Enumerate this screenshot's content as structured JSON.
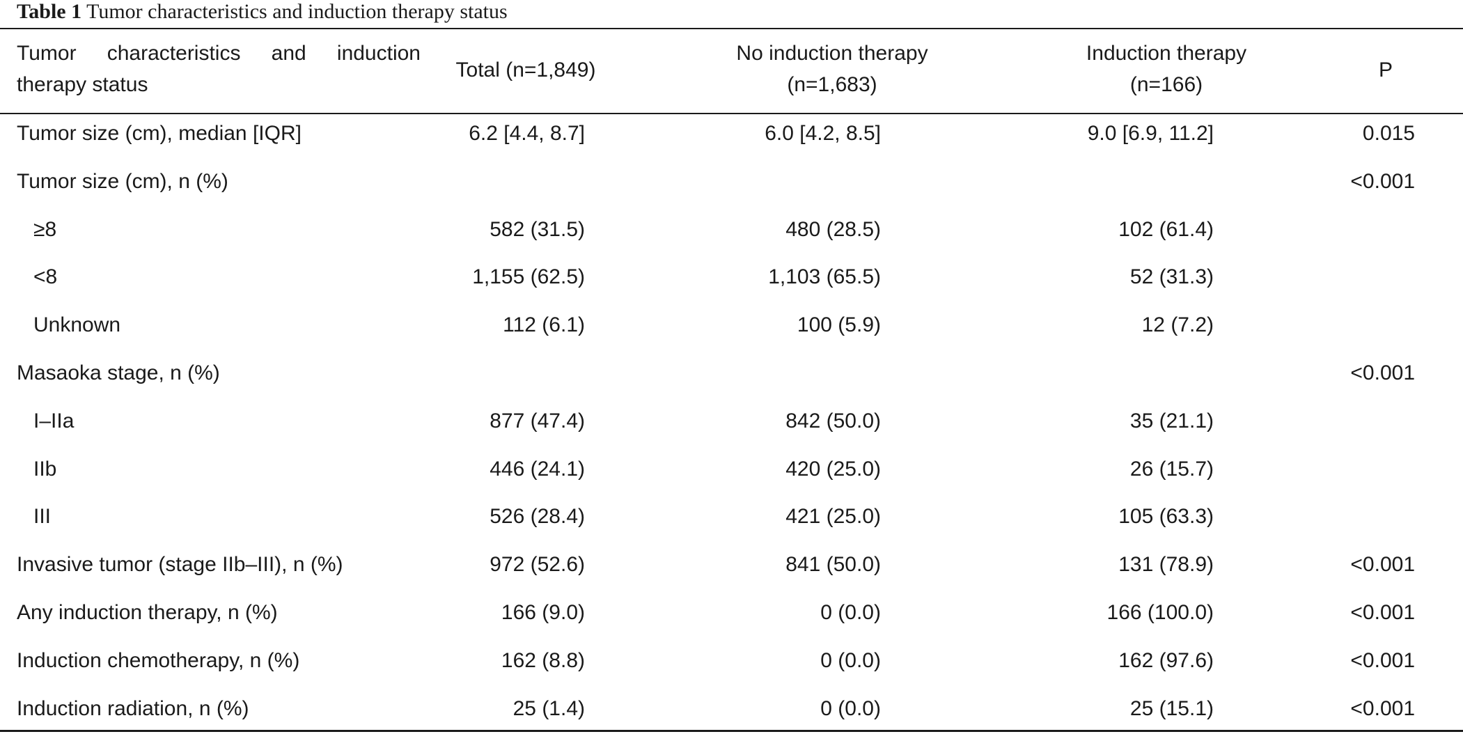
{
  "caption": {
    "label": "Table 1",
    "text": "Tumor characteristics and induction therapy status"
  },
  "columns": [
    "Tumor characteristics and induction therapy status",
    "Total (n=1,849)",
    "No induction therapy (n=1,683)",
    "Induction therapy (n=166)",
    "P"
  ],
  "header": {
    "c0_line1": "Tumor characteristics and induction",
    "c0_line2": "therapy status",
    "c1": "Total (n=1,849)",
    "c2_line1": "No induction therapy",
    "c2_line2": "(n=1,683)",
    "c3_line1": "Induction therapy",
    "c3_line2": "(n=166)",
    "c4": "P"
  },
  "rows": [
    {
      "label": "Tumor size (cm), median [IQR]",
      "indent": false,
      "total": "6.2 [4.4, 8.7]",
      "no_induction": "6.0 [4.2, 8.5]",
      "induction": "9.0 [6.9, 11.2]",
      "p": "0.015"
    },
    {
      "label": "Tumor size (cm), n (%)",
      "indent": false,
      "total": "",
      "no_induction": "",
      "induction": "",
      "p": "<0.001"
    },
    {
      "label": "≥8",
      "indent": true,
      "total": "582 (31.5)",
      "no_induction": "480 (28.5)",
      "induction": "102 (61.4)",
      "p": ""
    },
    {
      "label": "<8",
      "indent": true,
      "total": "1,155 (62.5)",
      "no_induction": "1,103 (65.5)",
      "induction": "52 (31.3)",
      "p": ""
    },
    {
      "label": "Unknown",
      "indent": true,
      "total": "112 (6.1)",
      "no_induction": "100 (5.9)",
      "induction": "12 (7.2)",
      "p": ""
    },
    {
      "label": "Masaoka stage, n (%)",
      "indent": false,
      "total": "",
      "no_induction": "",
      "induction": "",
      "p": "<0.001"
    },
    {
      "label": "I–IIa",
      "indent": true,
      "total": "877 (47.4)",
      "no_induction": "842 (50.0)",
      "induction": "35 (21.1)",
      "p": ""
    },
    {
      "label": "IIb",
      "indent": true,
      "total": "446 (24.1)",
      "no_induction": "420 (25.0)",
      "induction": "26 (15.7)",
      "p": ""
    },
    {
      "label": "III",
      "indent": true,
      "total": "526 (28.4)",
      "no_induction": "421 (25.0)",
      "induction": "105 (63.3)",
      "p": ""
    },
    {
      "label": "Invasive tumor (stage IIb–III), n (%)",
      "indent": false,
      "total": "972 (52.6)",
      "no_induction": "841 (50.0)",
      "induction": "131 (78.9)",
      "p": "<0.001"
    },
    {
      "label": "Any induction therapy, n (%)",
      "indent": false,
      "total": "166 (9.0)",
      "no_induction": "0 (0.0)",
      "induction": "166 (100.0)",
      "p": "<0.001"
    },
    {
      "label": "Induction chemotherapy, n (%)",
      "indent": false,
      "total": "162 (8.8)",
      "no_induction": "0 (0.0)",
      "induction": "162 (97.6)",
      "p": "<0.001"
    },
    {
      "label": "Induction radiation, n (%)",
      "indent": false,
      "total": "25 (1.4)",
      "no_induction": "0 (0.0)",
      "induction": "25 (15.1)",
      "p": "<0.001"
    }
  ]
}
